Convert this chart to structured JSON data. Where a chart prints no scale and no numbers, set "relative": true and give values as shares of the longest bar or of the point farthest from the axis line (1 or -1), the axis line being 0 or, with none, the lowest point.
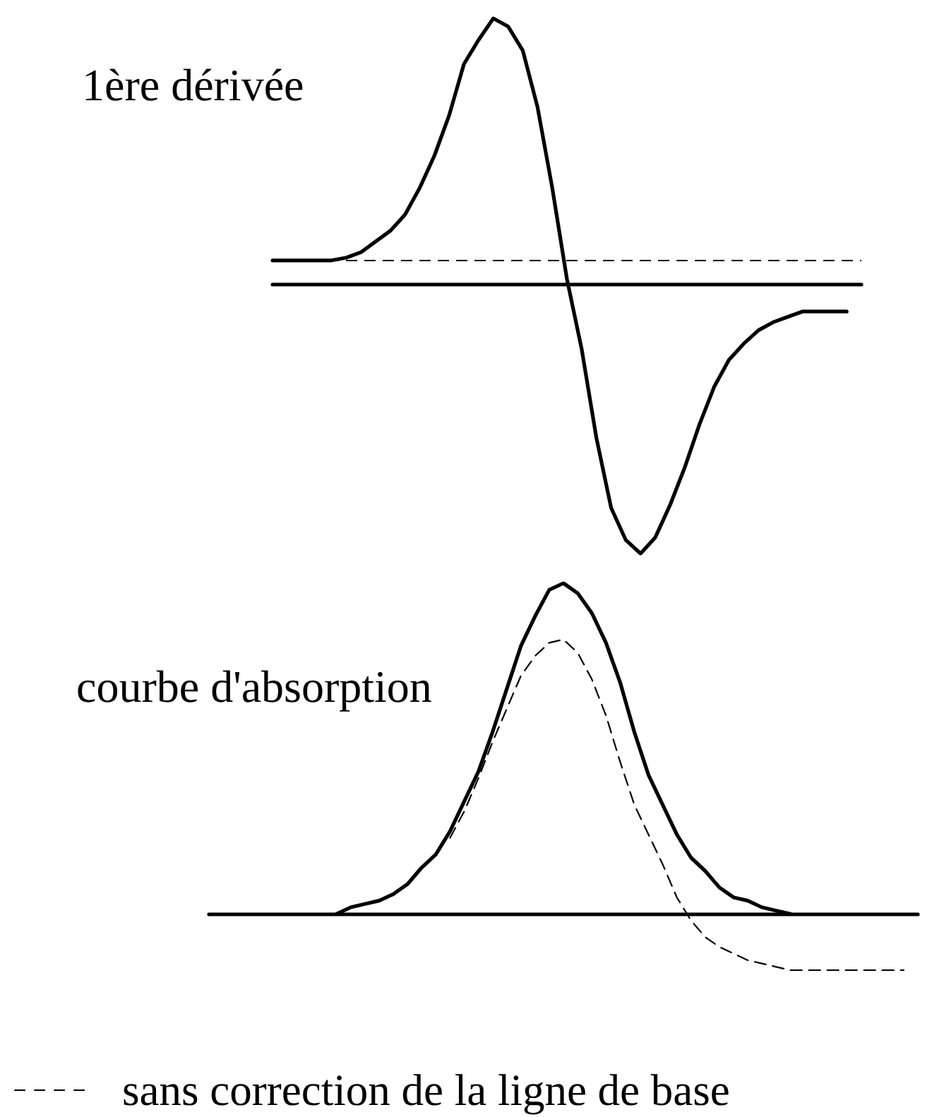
{
  "chart_data": [
    {
      "type": "line",
      "relative": true,
      "title": "1ère dérivée",
      "grid": false,
      "marker": "none",
      "categories": [
        null,
        null,
        null,
        null,
        null,
        null,
        null,
        null,
        null,
        null,
        null,
        null,
        null,
        null,
        null,
        null,
        null,
        null,
        null,
        null,
        null,
        null,
        null,
        null,
        null,
        null,
        null,
        null,
        null,
        null,
        null,
        null,
        null,
        null,
        null,
        null,
        null,
        null,
        null,
        null,
        null
      ],
      "series": [
        {
          "color": "#000000",
          "values": [
            0.09,
            0.09,
            0.09,
            0.09,
            0.09,
            0.1,
            0.12,
            0.16,
            0.2,
            0.26,
            0.36,
            0.48,
            0.63,
            0.82,
            0.91,
            0.99,
            0.96,
            0.87,
            0.66,
            0.36,
            0.02,
            -0.24,
            -0.57,
            -0.83,
            -0.95,
            -1,
            -0.94,
            -0.82,
            -0.68,
            -0.52,
            -0.38,
            -0.28,
            -0.22,
            -0.17,
            -0.14,
            -0.12,
            -0.1,
            -0.1,
            -0.1,
            -0.1,
            null
          ]
        }
      ],
      "ref_lines": [
        {
          "axis": "y",
          "value": 0.09,
          "color": "#000000",
          "line_style": "dashed"
        }
      ]
    },
    {
      "type": "line",
      "relative": true,
      "title": "courbe d'absorption",
      "grid": false,
      "marker": "none",
      "legend": "bottom left",
      "categories": [
        null,
        null,
        null,
        null,
        null,
        null,
        null,
        null,
        null,
        null,
        null,
        null,
        null,
        null,
        null,
        null,
        null,
        null,
        null,
        null,
        null,
        null,
        null,
        null,
        null,
        null,
        null,
        null,
        null,
        null,
        null,
        null,
        null,
        null,
        null,
        null,
        null,
        null,
        null,
        null,
        null,
        null,
        null,
        null,
        null,
        null,
        null,
        null,
        null,
        null,
        null
      ],
      "series": [
        {
          "color": "#000000",
          "values": [
            null,
            null,
            null,
            null,
            null,
            null,
            null,
            null,
            null,
            0,
            0.02,
            0.03,
            0.04,
            0.06,
            0.09,
            0.14,
            0.18,
            0.25,
            0.34,
            0.43,
            0.55,
            0.68,
            0.81,
            0.9,
            0.98,
            1,
            0.97,
            0.91,
            0.82,
            0.7,
            0.55,
            0.42,
            0.33,
            0.24,
            0.17,
            0.13,
            0.08,
            0.05,
            0.04,
            0.02,
            0.01,
            0,
            null,
            null,
            null,
            null,
            null,
            null,
            null,
            null,
            null
          ]
        },
        {
          "name": "sans correction de la ligne de base",
          "color": "#000000",
          "line_style": "dashed",
          "values": [
            null,
            null,
            null,
            null,
            null,
            null,
            null,
            null,
            null,
            null,
            null,
            null,
            null,
            null,
            null,
            null,
            null,
            0.23,
            0.31,
            0.41,
            0.52,
            0.62,
            0.72,
            0.78,
            0.82,
            0.83,
            0.79,
            0.71,
            0.6,
            0.46,
            0.33,
            0.24,
            0.15,
            0.05,
            -0.02,
            -0.07,
            -0.1,
            -0.12,
            -0.14,
            -0.15,
            -0.16,
            -0.17,
            -0.17,
            -0.17,
            -0.17,
            -0.17,
            -0.17,
            -0.17,
            -0.17,
            -0.17,
            null
          ]
        }
      ]
    }
  ]
}
